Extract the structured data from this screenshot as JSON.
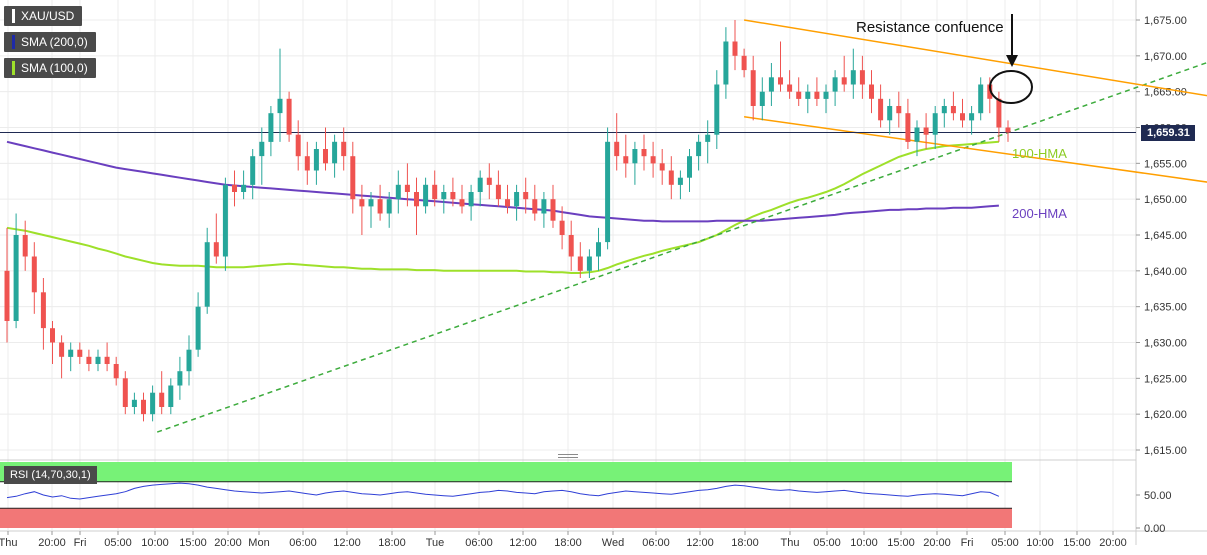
{
  "indicators": {
    "symbol": "XAU/USD",
    "sma200": "SMA (200,0)",
    "sma100": "SMA (100,0)",
    "rsi": "RSI (14,70,30,1)",
    "colors": {
      "symbol": "#ffffff",
      "sma200": "#1e2aa8",
      "sma100": "#9ee02a"
    }
  },
  "current_price": "1,659.31",
  "annotations": {
    "resistance": "Resistance confuence",
    "hma100": "100-HMA",
    "hma200": "200-HMA"
  },
  "chart_data": {
    "type": "candlestick",
    "title": "",
    "xlabel": "",
    "ylabel": "",
    "ylim": [
      1615,
      1677
    ],
    "y_ticks": [
      "1,615.00",
      "1,620.00",
      "1,625.00",
      "1,630.00",
      "1,635.00",
      "1,640.00",
      "1,645.00",
      "1,650.00",
      "1,655.00",
      "1,660.00",
      "1,665.00",
      "1,670.00",
      "1,675.00"
    ],
    "x_tick_labels": [
      "Thu",
      "20:00",
      "Fri",
      "05:00",
      "10:00",
      "15:00",
      "20:00",
      "Mon",
      "06:00",
      "12:00",
      "18:00",
      "Tue",
      "06:00",
      "12:00",
      "18:00",
      "Wed",
      "06:00",
      "12:00",
      "18:00",
      "Thu",
      "05:00",
      "10:00",
      "15:00",
      "20:00",
      "Fri",
      "05:00",
      "10:00",
      "15:00",
      "20:00"
    ],
    "last_price": 1659.31,
    "candles": [
      [
        1640,
        1646,
        1630,
        1633
      ],
      [
        1633,
        1648,
        1632,
        1645
      ],
      [
        1645,
        1647,
        1640,
        1642
      ],
      [
        1642,
        1644,
        1634,
        1637
      ],
      [
        1637,
        1639,
        1629,
        1632
      ],
      [
        1632,
        1633,
        1627,
        1630
      ],
      [
        1630,
        1631,
        1625,
        1628
      ],
      [
        1628,
        1630,
        1626,
        1629
      ],
      [
        1629,
        1630,
        1627,
        1628
      ],
      [
        1628,
        1629,
        1626,
        1627
      ],
      [
        1627,
        1629,
        1626,
        1628
      ],
      [
        1628,
        1630,
        1626,
        1627
      ],
      [
        1627,
        1628,
        1624,
        1625
      ],
      [
        1625,
        1626,
        1620,
        1621
      ],
      [
        1621,
        1623,
        1620,
        1622
      ],
      [
        1622,
        1623,
        1619,
        1620
      ],
      [
        1620,
        1624,
        1619,
        1623
      ],
      [
        1623,
        1626,
        1620,
        1621
      ],
      [
        1621,
        1625,
        1620,
        1624
      ],
      [
        1624,
        1628,
        1622,
        1626
      ],
      [
        1626,
        1631,
        1624,
        1629
      ],
      [
        1629,
        1637,
        1628,
        1635
      ],
      [
        1635,
        1646,
        1634,
        1644
      ],
      [
        1644,
        1648,
        1641,
        1642
      ],
      [
        1642,
        1653,
        1640,
        1652
      ],
      [
        1652,
        1654,
        1649,
        1651
      ],
      [
        1651,
        1654,
        1650,
        1652
      ],
      [
        1652,
        1657,
        1650,
        1656
      ],
      [
        1656,
        1660,
        1652,
        1658
      ],
      [
        1658,
        1663,
        1656,
        1662
      ],
      [
        1662,
        1671,
        1658,
        1664
      ],
      [
        1664,
        1665,
        1658,
        1659
      ],
      [
        1659,
        1661,
        1654,
        1656
      ],
      [
        1656,
        1658,
        1652,
        1654
      ],
      [
        1654,
        1658,
        1652,
        1657
      ],
      [
        1657,
        1660,
        1654,
        1655
      ],
      [
        1655,
        1659,
        1653,
        1658
      ],
      [
        1658,
        1660,
        1654,
        1656
      ],
      [
        1656,
        1658,
        1648,
        1650
      ],
      [
        1650,
        1652,
        1645,
        1649
      ],
      [
        1649,
        1651,
        1646,
        1650
      ],
      [
        1650,
        1652,
        1647,
        1648
      ],
      [
        1648,
        1651,
        1646,
        1650
      ],
      [
        1650,
        1654,
        1648,
        1652
      ],
      [
        1652,
        1655,
        1649,
        1651
      ],
      [
        1651,
        1653,
        1645,
        1649
      ],
      [
        1649,
        1653,
        1648,
        1652
      ],
      [
        1652,
        1654,
        1649,
        1650
      ],
      [
        1650,
        1652,
        1648,
        1651
      ],
      [
        1651,
        1653,
        1649,
        1650
      ],
      [
        1650,
        1652,
        1648,
        1649
      ],
      [
        1649,
        1652,
        1647,
        1651
      ],
      [
        1651,
        1654,
        1649,
        1653
      ],
      [
        1653,
        1655,
        1650,
        1652
      ],
      [
        1652,
        1654,
        1649,
        1650
      ],
      [
        1650,
        1652,
        1648,
        1649
      ],
      [
        1649,
        1652,
        1647,
        1651
      ],
      [
        1651,
        1653,
        1648,
        1650
      ],
      [
        1650,
        1652,
        1647,
        1648
      ],
      [
        1648,
        1651,
        1646,
        1650
      ],
      [
        1650,
        1652,
        1646,
        1647
      ],
      [
        1647,
        1649,
        1643,
        1645
      ],
      [
        1645,
        1647,
        1640,
        1642
      ],
      [
        1642,
        1644,
        1639,
        1640
      ],
      [
        1640,
        1643,
        1639,
        1642
      ],
      [
        1642,
        1646,
        1640,
        1644
      ],
      [
        1644,
        1660,
        1643,
        1658
      ],
      [
        1658,
        1662,
        1654,
        1656
      ],
      [
        1656,
        1659,
        1653,
        1655
      ],
      [
        1655,
        1658,
        1652,
        1657
      ],
      [
        1657,
        1659,
        1654,
        1656
      ],
      [
        1656,
        1658,
        1653,
        1655
      ],
      [
        1655,
        1657,
        1652,
        1654
      ],
      [
        1654,
        1656,
        1650,
        1652
      ],
      [
        1652,
        1654,
        1650,
        1653
      ],
      [
        1653,
        1657,
        1651,
        1656
      ],
      [
        1656,
        1659,
        1654,
        1658
      ],
      [
        1658,
        1661,
        1655,
        1659
      ],
      [
        1659,
        1668,
        1657,
        1666
      ],
      [
        1666,
        1674,
        1664,
        1672
      ],
      [
        1672,
        1675,
        1668,
        1670
      ],
      [
        1670,
        1671,
        1667,
        1668
      ],
      [
        1668,
        1670,
        1661,
        1663
      ],
      [
        1663,
        1667,
        1661,
        1665
      ],
      [
        1665,
        1669,
        1663,
        1667
      ],
      [
        1667,
        1672,
        1665,
        1666
      ],
      [
        1666,
        1668,
        1664,
        1665
      ],
      [
        1665,
        1667,
        1663,
        1664
      ],
      [
        1664,
        1666,
        1662,
        1665
      ],
      [
        1665,
        1667,
        1663,
        1664
      ],
      [
        1664,
        1666,
        1662,
        1665
      ],
      [
        1665,
        1668,
        1663,
        1667
      ],
      [
        1667,
        1670,
        1665,
        1666
      ],
      [
        1666,
        1671,
        1664,
        1668
      ],
      [
        1668,
        1670,
        1664,
        1666
      ],
      [
        1666,
        1668,
        1662,
        1664
      ],
      [
        1664,
        1666,
        1660,
        1661
      ],
      [
        1661,
        1664,
        1659,
        1663
      ],
      [
        1663,
        1665,
        1660,
        1662
      ],
      [
        1662,
        1664,
        1657,
        1658
      ],
      [
        1658,
        1661,
        1656,
        1660
      ],
      [
        1660,
        1662,
        1657,
        1659
      ],
      [
        1659,
        1663,
        1657,
        1662
      ],
      [
        1662,
        1664,
        1660,
        1663
      ],
      [
        1663,
        1665,
        1661,
        1662
      ],
      [
        1662,
        1664,
        1660,
        1661
      ],
      [
        1661,
        1663,
        1659,
        1662
      ],
      [
        1662,
        1667,
        1661,
        1666
      ],
      [
        1666,
        1667,
        1662,
        1664
      ],
      [
        1664,
        1665,
        1658,
        1660
      ],
      [
        1660,
        1661,
        1658,
        1659.31
      ]
    ],
    "series": [
      {
        "name": "100-HMA",
        "values": [
          1646,
          1645.8,
          1645.6,
          1645.3,
          1645.0,
          1644.7,
          1644.4,
          1644.1,
          1643.8,
          1643.5,
          1643.1,
          1642.8,
          1642.4,
          1642.0,
          1641.7,
          1641.4,
          1641.1,
          1640.9,
          1640.8,
          1640.7,
          1640.7,
          1640.7,
          1640.6,
          1640.5,
          1640.5,
          1640.5,
          1640.5,
          1640.6,
          1640.7,
          1640.8,
          1640.9,
          1641.0,
          1640.9,
          1640.8,
          1640.7,
          1640.6,
          1640.5,
          1640.5,
          1640.4,
          1640.3,
          1640.3,
          1640.2,
          1640.2,
          1640.2,
          1640.2,
          1640.1,
          1640.1,
          1640.1,
          1640.0,
          1640.0,
          1640.0,
          1640.0,
          1640.0,
          1640.0,
          1640.0,
          1640.0,
          1640.0,
          1639.9,
          1639.9,
          1639.9,
          1639.8,
          1639.8,
          1639.7,
          1639.7,
          1639.8,
          1640.0,
          1640.4,
          1640.9,
          1641.3,
          1641.7,
          1642.1,
          1642.4,
          1642.8,
          1643.1,
          1643.4,
          1643.7,
          1644.0,
          1644.5,
          1645.0,
          1645.7,
          1646.4,
          1647.0,
          1647.6,
          1648.1,
          1648.5,
          1649.0,
          1649.5,
          1649.9,
          1650.2,
          1650.6,
          1651.0,
          1651.5,
          1652.1,
          1652.8,
          1653.5,
          1654.1,
          1654.7,
          1655.3,
          1655.9,
          1656.3,
          1656.7,
          1657.0,
          1657.2,
          1657.4,
          1657.5,
          1657.6,
          1657.7,
          1657.8,
          1657.9,
          1658.0
        ]
      },
      {
        "name": "200-HMA",
        "values": [
          1658,
          1657.7,
          1657.4,
          1657.1,
          1656.8,
          1656.5,
          1656.2,
          1655.9,
          1655.6,
          1655.3,
          1655.0,
          1654.7,
          1654.4,
          1654.2,
          1654.0,
          1653.8,
          1653.6,
          1653.4,
          1653.2,
          1653.0,
          1652.8,
          1652.6,
          1652.4,
          1652.2,
          1652.0,
          1651.9,
          1651.8,
          1651.7,
          1651.6,
          1651.5,
          1651.4,
          1651.3,
          1651.2,
          1651.1,
          1651.0,
          1650.9,
          1650.8,
          1650.7,
          1650.6,
          1650.5,
          1650.4,
          1650.3,
          1650.2,
          1650.1,
          1650.0,
          1649.9,
          1649.8,
          1649.7,
          1649.6,
          1649.5,
          1649.4,
          1649.3,
          1649.2,
          1649.1,
          1649.0,
          1648.9,
          1648.8,
          1648.7,
          1648.6,
          1648.5,
          1648.4,
          1648.2,
          1648.0,
          1647.8,
          1647.6,
          1647.5,
          1647.4,
          1647.3,
          1647.2,
          1647.1,
          1647.0,
          1647.0,
          1646.9,
          1646.9,
          1646.9,
          1646.9,
          1646.9,
          1646.9,
          1647.0,
          1647.0,
          1647.0,
          1647.0,
          1647.0,
          1647.0,
          1647.1,
          1647.2,
          1647.3,
          1647.4,
          1647.5,
          1647.6,
          1647.7,
          1647.8,
          1648.0,
          1648.1,
          1648.2,
          1648.3,
          1648.4,
          1648.5,
          1648.5,
          1648.6,
          1648.6,
          1648.7,
          1648.7,
          1648.7,
          1648.8,
          1648.8,
          1648.8,
          1648.9,
          1649.0,
          1649.1
        ]
      }
    ],
    "trendlines": [
      {
        "name": "support",
        "style": "dashed",
        "from": [
          16.5,
          1617.5
        ],
        "to": [
          134,
          1670
        ]
      },
      {
        "name": "channel-top",
        "style": "solid",
        "from": [
          81,
          1675
        ],
        "to": [
          134,
          1664
        ]
      },
      {
        "name": "channel-bottom",
        "style": "solid",
        "from": [
          81,
          1661.5
        ],
        "to": [
          134,
          1652
        ]
      }
    ],
    "rsi": {
      "upper": 70,
      "lower": 30,
      "tick_labels": [
        "50.00",
        "0.00"
      ],
      "values": [
        46,
        48,
        52,
        55,
        50,
        47,
        49,
        45,
        44,
        46,
        48,
        50,
        52,
        55,
        60,
        63,
        65,
        66,
        67,
        68,
        67,
        65,
        62,
        60,
        58,
        56,
        55,
        54,
        53,
        54,
        55,
        56,
        54,
        52,
        50,
        53,
        55,
        56,
        54,
        52,
        51,
        50,
        52,
        54,
        55,
        53,
        51,
        50,
        49,
        48,
        50,
        52,
        54,
        55,
        57,
        56,
        54,
        53,
        52,
        55,
        56,
        57,
        55,
        52,
        50,
        49,
        52,
        54,
        56,
        55,
        54,
        53,
        52,
        51,
        53,
        55,
        57,
        58,
        60,
        63,
        65,
        64,
        62,
        60,
        58,
        57,
        58,
        56,
        55,
        54,
        55,
        56,
        57,
        55,
        53,
        52,
        51,
        50,
        49,
        48,
        50,
        51,
        52,
        51,
        50,
        49,
        52,
        55,
        54,
        48
      ]
    },
    "colors": {
      "up": "#26a69a",
      "down": "#ef5350",
      "hma100": "#9ee02a",
      "hma200": "#6a3fbf",
      "trend": "#ff9f00",
      "support": "#3cab3c",
      "price_line": "#1f2a52"
    }
  }
}
